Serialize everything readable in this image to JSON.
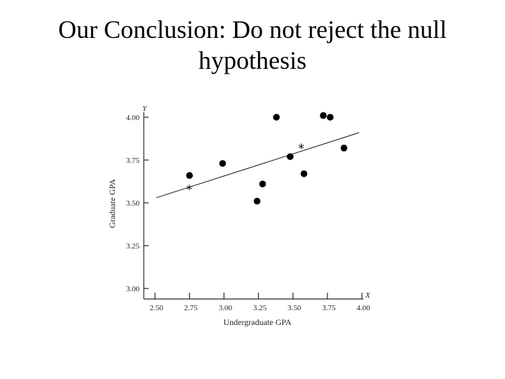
{
  "slide": {
    "title_line1": "Our Conclusion: Do not reject the null",
    "title_line2": "hypothesis"
  },
  "chart_data": {
    "type": "scatter",
    "title": "",
    "xlabel": "Undergraduate GPA",
    "ylabel": "Graduate GPA",
    "x_axis_letter": "X",
    "y_axis_letter": "Y",
    "xlim": [
      2.5,
      4.0
    ],
    "ylim": [
      3.0,
      4.0
    ],
    "x_ticks": [
      "2.50",
      "2.75",
      "3.00",
      "3.25",
      "3.50",
      "3.75",
      "4.00"
    ],
    "y_ticks": [
      "3.00",
      "3.25",
      "3.50",
      "3.75",
      "4.00"
    ],
    "grid": false,
    "points": [
      {
        "x": 2.75,
        "y": 3.66
      },
      {
        "x": 2.99,
        "y": 3.73
      },
      {
        "x": 3.24,
        "y": 3.51
      },
      {
        "x": 3.28,
        "y": 3.61
      },
      {
        "x": 3.38,
        "y": 4.0
      },
      {
        "x": 3.48,
        "y": 3.77
      },
      {
        "x": 3.58,
        "y": 3.67
      },
      {
        "x": 3.72,
        "y": 4.01
      },
      {
        "x": 3.77,
        "y": 4.0
      },
      {
        "x": 3.87,
        "y": 3.82
      }
    ],
    "regression_line": {
      "x_start": 2.51,
      "y_start": 3.53,
      "x_end": 3.98,
      "y_end": 3.91
    },
    "markers": [
      {
        "symbol": "*",
        "x": 2.75,
        "y": 3.59
      },
      {
        "symbol": "*",
        "x": 3.56,
        "y": 3.83
      }
    ]
  }
}
